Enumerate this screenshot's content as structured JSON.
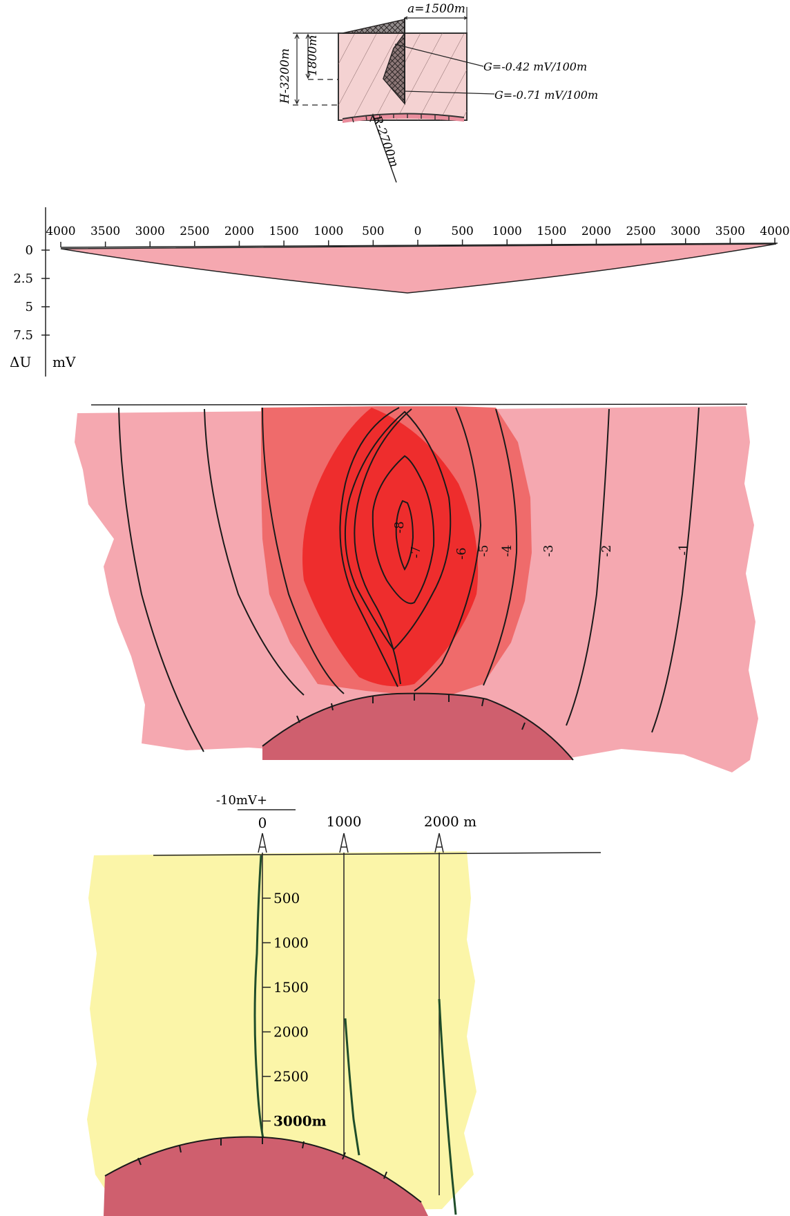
{
  "diagram": {
    "top_model": {
      "width_label": "a=1500m",
      "depth_h_label": "H-3200m",
      "depth_mid_label": "1800m",
      "radius_label": "R-2700m",
      "gradient_upper": "G=-0.42  mV/100m",
      "gradient_lower": "G=-0.71  mV/100m"
    },
    "profile": {
      "x_ticks": [
        "4000",
        "3500",
        "3000",
        "2500",
        "2000",
        "1500",
        "1000",
        "500",
        "0",
        "500",
        "1000",
        "1500",
        "2000",
        "2500",
        "3000",
        "3500",
        "4000"
      ],
      "y_ticks": [
        "0",
        "2.5",
        "5",
        "7.5"
      ],
      "y_symbol": "ΔU",
      "y_unit": "mV"
    },
    "contours": {
      "labels": [
        "-8",
        "-7",
        "-6",
        "-5",
        "-4",
        "-3",
        "-2",
        "-1"
      ]
    },
    "wells": {
      "scale_label": "-10mV+",
      "well_labels": [
        "0",
        "1000",
        "2000 m"
      ],
      "depth_ticks": [
        "500",
        "1000",
        "1500",
        "2000",
        "2500",
        "3000m"
      ]
    },
    "colors": {
      "light_pink": "#f5a8b0",
      "mid_red": "#ef6b6b",
      "deep_red": "#ee2d2d",
      "dome": "#cf5f6e",
      "yellow": "#fbf5a8",
      "curve_green": "#1f4d2a"
    }
  }
}
